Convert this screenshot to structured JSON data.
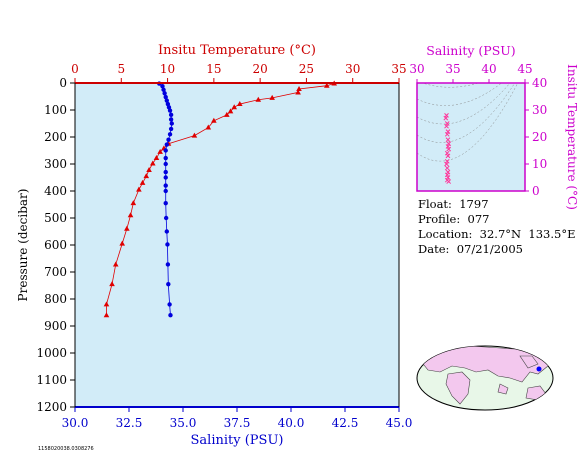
{
  "chart_data": [
    {
      "type": "scatter",
      "title": "",
      "top_axis": {
        "label": "Insitu Temperature (°C)",
        "ticks": [
          "0",
          "5",
          "10",
          "15",
          "20",
          "25",
          "30",
          "35"
        ],
        "range": [
          0,
          35
        ],
        "color": "#cc0000"
      },
      "bottom_axis": {
        "label": "Salinity (PSU)",
        "ticks": [
          "30.0",
          "32.5",
          "35.0",
          "37.5",
          "40.0",
          "42.5",
          "45.0"
        ],
        "range": [
          30,
          45
        ],
        "color": "#0000cc"
      },
      "y_axis": {
        "label": "Pressure (decibar)",
        "ticks": [
          "0",
          "100",
          "200",
          "300",
          "400",
          "500",
          "600",
          "700",
          "800",
          "900",
          "1000",
          "1100",
          "1200"
        ],
        "range": [
          0,
          1200
        ],
        "inverted": true
      },
      "series": [
        {
          "marker": "triangle",
          "color": "#e00000",
          "points": [
            [
              28.0,
              2
            ],
            [
              27.2,
              10
            ],
            [
              24.2,
              22
            ],
            [
              24.1,
              35
            ],
            [
              21.3,
              55
            ],
            [
              19.8,
              62
            ],
            [
              17.8,
              78
            ],
            [
              17.2,
              90
            ],
            [
              16.8,
              105
            ],
            [
              16.4,
              118
            ],
            [
              15.0,
              140
            ],
            [
              14.4,
              165
            ],
            [
              12.9,
              195
            ],
            [
              10.1,
              225
            ],
            [
              9.6,
              242
            ],
            [
              9.2,
              255
            ],
            [
              8.8,
              278
            ],
            [
              8.4,
              298
            ],
            [
              8.0,
              322
            ],
            [
              7.7,
              345
            ],
            [
              7.3,
              370
            ],
            [
              6.9,
              395
            ],
            [
              6.3,
              445
            ],
            [
              6.0,
              490
            ],
            [
              5.6,
              540
            ],
            [
              5.1,
              595
            ],
            [
              4.4,
              672
            ],
            [
              4.0,
              745
            ],
            [
              3.4,
              820
            ],
            [
              3.4,
              860
            ]
          ]
        },
        {
          "marker": "circle",
          "color": "#0000dd",
          "points": [
            [
              33.9,
              2
            ],
            [
              34.05,
              12
            ],
            [
              34.1,
              25
            ],
            [
              34.15,
              38
            ],
            [
              34.2,
              52
            ],
            [
              34.25,
              65
            ],
            [
              34.3,
              78
            ],
            [
              34.35,
              90
            ],
            [
              34.4,
              102
            ],
            [
              34.45,
              118
            ],
            [
              34.45,
              135
            ],
            [
              34.48,
              150
            ],
            [
              34.45,
              170
            ],
            [
              34.4,
              190
            ],
            [
              34.33,
              210
            ],
            [
              34.25,
              228
            ],
            [
              34.2,
              250
            ],
            [
              34.2,
              278
            ],
            [
              34.2,
              300
            ],
            [
              34.2,
              330
            ],
            [
              34.2,
              350
            ],
            [
              34.2,
              380
            ],
            [
              34.2,
              400
            ],
            [
              34.2,
              445
            ],
            [
              34.22,
              500
            ],
            [
              34.25,
              550
            ],
            [
              34.28,
              598
            ],
            [
              34.3,
              672
            ],
            [
              34.32,
              745
            ],
            [
              34.38,
              820
            ],
            [
              34.42,
              860
            ]
          ]
        }
      ]
    },
    {
      "type": "scatter",
      "top_axis": {
        "label": "Salinity (PSU)",
        "ticks": [
          "30",
          "35",
          "40",
          "45"
        ],
        "range": [
          30,
          45
        ],
        "color": "#cc00cc"
      },
      "right_axis": {
        "label": "Insitu Temperature (°C)",
        "ticks": [
          "0",
          "10",
          "20",
          "30",
          "40"
        ],
        "range": [
          0,
          40
        ],
        "color": "#cc00cc"
      },
      "series": [
        {
          "marker": "x",
          "color": "#ff3399",
          "points": [
            [
              34.1,
              28
            ],
            [
              34.0,
              27
            ],
            [
              34.2,
              25
            ],
            [
              34.1,
              24
            ],
            [
              34.3,
              22
            ],
            [
              34.2,
              21
            ],
            [
              34.3,
              19
            ],
            [
              34.4,
              17.5
            ],
            [
              34.3,
              16.5
            ],
            [
              34.4,
              15.5
            ],
            [
              34.2,
              14
            ],
            [
              34.3,
              13
            ],
            [
              34.2,
              11
            ],
            [
              34.1,
              10
            ],
            [
              34.2,
              8.5
            ],
            [
              34.3,
              7
            ],
            [
              34.2,
              6
            ],
            [
              34.3,
              5
            ],
            [
              34.2,
              4
            ],
            [
              34.4,
              3.5
            ]
          ]
        }
      ]
    }
  ],
  "info": {
    "float": "Float:  1797",
    "profile": "Profile:  077",
    "location": "Location:  32.7°N  133.5°E",
    "date": "Date:  07/21/2005"
  },
  "footnote": "1158020038.0308276"
}
